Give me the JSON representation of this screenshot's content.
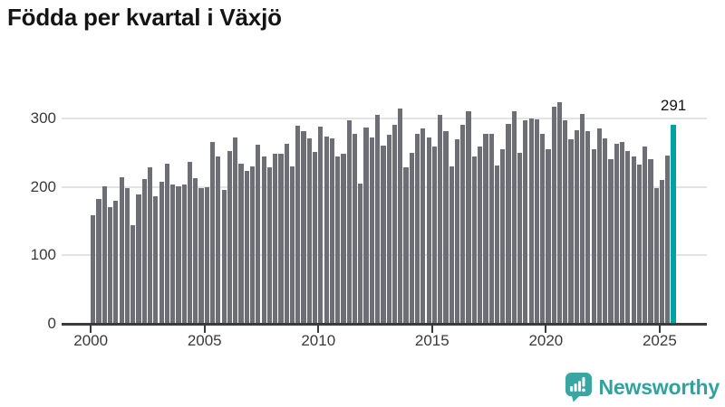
{
  "title": "Födda per kvartal i Växjö",
  "chart_data": {
    "type": "bar",
    "title": "Födda per kvartal i Växjö",
    "x_unit": "quarter",
    "start_period": "2000 Q1",
    "end_period": "2025 Q3",
    "values": [
      158,
      182,
      201,
      170,
      180,
      214,
      198,
      144,
      189,
      211,
      228,
      186,
      207,
      234,
      203,
      201,
      204,
      236,
      213,
      198,
      200,
      266,
      245,
      196,
      252,
      272,
      234,
      223,
      230,
      262,
      245,
      228,
      248,
      248,
      263,
      230,
      289,
      281,
      271,
      251,
      288,
      273,
      271,
      244,
      249,
      297,
      277,
      205,
      287,
      272,
      305,
      260,
      276,
      291,
      314,
      228,
      250,
      277,
      285,
      272,
      259,
      305,
      281,
      230,
      270,
      291,
      310,
      244,
      259,
      277,
      278,
      231,
      255,
      292,
      311,
      250,
      297,
      300,
      299,
      278,
      255,
      317,
      324,
      297,
      269,
      283,
      307,
      282,
      255,
      286,
      271,
      240,
      263,
      265,
      252,
      244,
      233,
      259,
      240,
      198,
      210,
      246,
      291
    ],
    "x_tick_labels": [
      "2000",
      "2005",
      "2010",
      "2015",
      "2020",
      "2025"
    ],
    "y_ticks": [
      0,
      100,
      200,
      300
    ],
    "y_tick_labels": [
      "0",
      "100",
      "200",
      "300"
    ],
    "ylim": [
      0,
      340
    ],
    "grid": "horizontal",
    "legend": "none",
    "bar_color": "#6E6F76",
    "highlight_index": 102,
    "highlight_value": 291,
    "highlight_label": "291",
    "highlight_color": "#00A1A1",
    "grid_color": "#E3E3E3",
    "axis_color": "#3B3B3B",
    "label_color": "#3A3A3A"
  },
  "branding": {
    "name": "Newsworthy",
    "text_color": "#31A29D",
    "icon": "newsworthy-chart-bubble-icon",
    "icon_color": "#3AA6A2"
  }
}
